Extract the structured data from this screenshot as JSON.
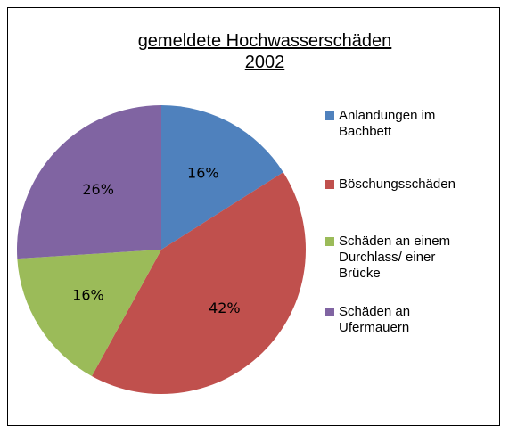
{
  "chart_data": {
    "type": "pie",
    "title": "gemeldete Hochwasserschäden 2002",
    "categories": [
      "Anlandungen im Bachbett",
      "Böschungsschäden",
      "Schäden an einem Durchlass/ einer Brücke",
      "Schäden an Ufermauern"
    ],
    "values": [
      16,
      42,
      16,
      26
    ],
    "value_labels": [
      "16%",
      "42%",
      "16%",
      "26%"
    ],
    "colors": [
      "#4f81bd",
      "#c0504d",
      "#9bbb59",
      "#8064a2"
    ],
    "legend": "right"
  }
}
